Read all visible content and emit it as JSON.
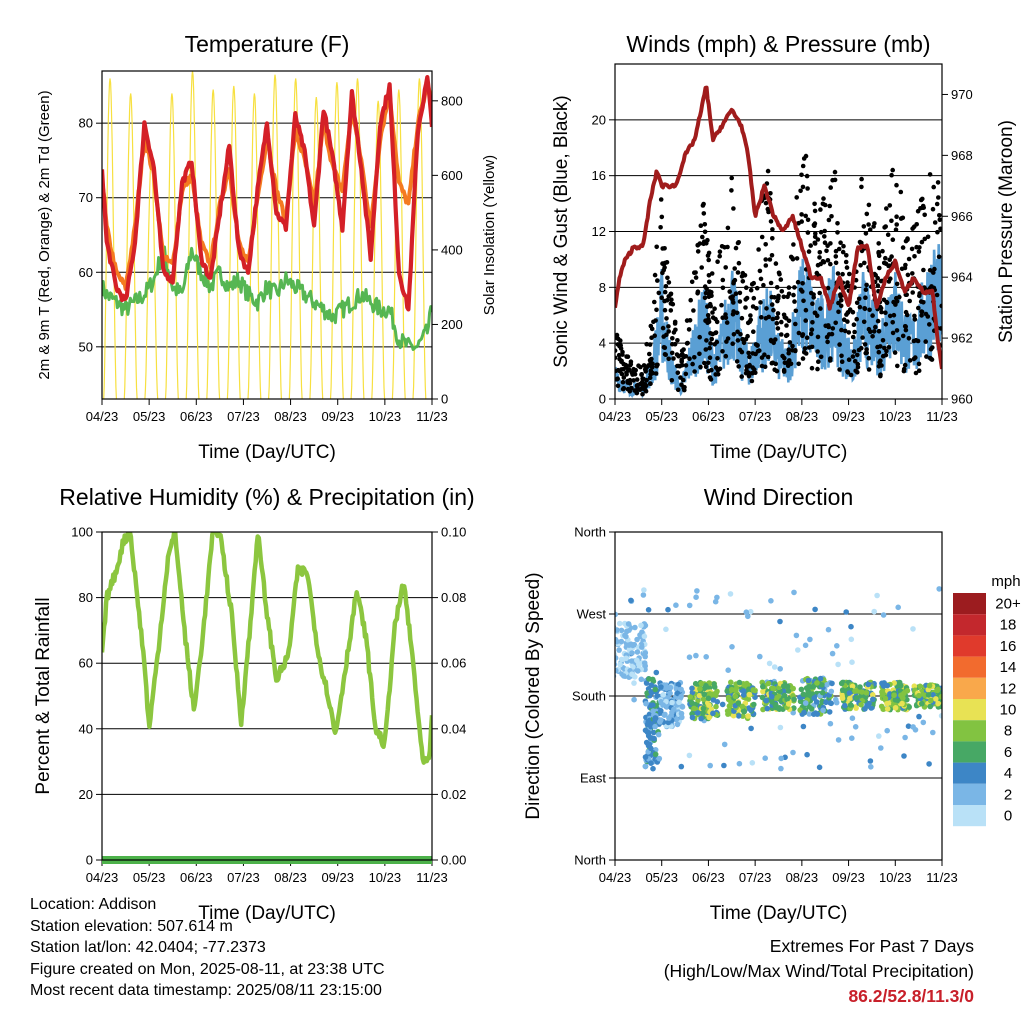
{
  "colors": {
    "t2m": "#d42027",
    "t9m": "#f47a20",
    "td": "#4db24a",
    "solar": "#f7e040",
    "gust": "#000000",
    "sonic": "#5a9fd4",
    "pressure": "#a01c1c",
    "rh": "#8cc63f",
    "precip": "#4db24a",
    "extremes": "#c8202a"
  },
  "info": {
    "location": "Location: Addison",
    "elevation": "Station elevation: 507.614 m",
    "latlon": "Station lat/lon: 42.0404; -77.2373",
    "created": "Figure created on Mon, 2025-08-11, at 23:38 UTC",
    "recent": "Most recent data timestamp: 2025/08/11 23:15:00"
  },
  "extremes": {
    "title": "Extremes For Past 7 Days",
    "subtitle": "(High/Low/Max Wind/Total Precipitation)",
    "values": "86.2/52.8/11.3/0"
  },
  "chart_data": [
    {
      "id": "temperature",
      "type": "line",
      "title": "Temperature (F)",
      "xlabel": "Time (Day/UTC)",
      "ylabel": "2m & 9m T (Red, Orange) & 2m Td (Green)",
      "y2label": "Solar Insolation (Yellow)",
      "x_ticks": [
        "04/23",
        "05/23",
        "06/23",
        "07/23",
        "08/23",
        "09/23",
        "10/23",
        "11/23"
      ],
      "xlim": [
        0,
        7
      ],
      "ylim": [
        43,
        87
      ],
      "y_ticks": [
        50,
        60,
        70,
        80
      ],
      "y2lim": [
        0,
        880
      ],
      "y2_ticks": [
        0,
        200,
        400,
        600,
        800
      ],
      "grid": true,
      "series": [
        {
          "key": "td",
          "x": [
            0,
            0.1,
            0.3,
            0.5,
            0.7,
            0.9,
            1.1,
            1.3,
            1.5,
            1.7,
            1.9,
            2.1,
            2.3,
            2.5,
            2.7,
            2.9,
            3.1,
            3.3,
            3.5,
            3.7,
            3.9,
            4.1,
            4.3,
            4.5,
            4.7,
            4.9,
            5.1,
            5.3,
            5.5,
            5.7,
            5.9,
            6.1,
            6.3,
            6.5,
            6.7,
            6.9,
            7
          ],
          "y": [
            58,
            57,
            56,
            55,
            56,
            57,
            59,
            63,
            58,
            57,
            63,
            60,
            58,
            60,
            58,
            59,
            57,
            56,
            58,
            57,
            59,
            58,
            57,
            56,
            55,
            54,
            55,
            56,
            57,
            56,
            55,
            55,
            51,
            50,
            50,
            52,
            55
          ]
        },
        {
          "key": "t9m",
          "x": [
            0,
            0.1,
            0.3,
            0.5,
            0.7,
            0.9,
            1.1,
            1.3,
            1.5,
            1.7,
            1.9,
            2.1,
            2.3,
            2.5,
            2.7,
            2.9,
            3.1,
            3.3,
            3.5,
            3.7,
            3.9,
            4.1,
            4.3,
            4.5,
            4.7,
            4.9,
            5.1,
            5.3,
            5.5,
            5.7,
            5.9,
            6.1,
            6.3,
            6.5,
            6.7,
            6.9,
            7
          ],
          "y": [
            73,
            66,
            60,
            58,
            66,
            78,
            73,
            62,
            61,
            71,
            73,
            64,
            61,
            69,
            74,
            64,
            61,
            70,
            78,
            71,
            67,
            79,
            75,
            69,
            80,
            74,
            71,
            82,
            75,
            66,
            78,
            84,
            72,
            69,
            80,
            85,
            83
          ]
        },
        {
          "key": "t2m",
          "x": [
            0,
            0.1,
            0.3,
            0.5,
            0.7,
            0.9,
            1.1,
            1.3,
            1.5,
            1.7,
            1.9,
            2.1,
            2.3,
            2.5,
            2.7,
            2.9,
            3.1,
            3.3,
            3.5,
            3.7,
            3.9,
            4.1,
            4.3,
            4.5,
            4.7,
            4.9,
            5.1,
            5.3,
            5.5,
            5.7,
            5.9,
            6.1,
            6.3,
            6.5,
            6.7,
            6.9,
            7
          ],
          "y": [
            74,
            64,
            58,
            56,
            64,
            80,
            74,
            60,
            59,
            72,
            75,
            62,
            59,
            68,
            77,
            63,
            60,
            71,
            80,
            68,
            66,
            81,
            76,
            66,
            82,
            75,
            66,
            84,
            74,
            62,
            80,
            85,
            60,
            55,
            79,
            86,
            80
          ]
        }
      ],
      "solar": {
        "key": "solar",
        "peaks": [
          860,
          820,
          640,
          820,
          880,
          830,
          840,
          820,
          870,
          860,
          810,
          850,
          860,
          800,
          830,
          860
        ]
      }
    },
    {
      "id": "winds",
      "type": "line",
      "title": "Winds (mph) & Pressure (mb)",
      "xlabel": "Time (Day/UTC)",
      "ylabel": "Sonic Wind & Gust (Blue, Black)",
      "y2label": "Station Pressure (Maroon)",
      "x_ticks": [
        "04/23",
        "05/23",
        "06/23",
        "07/23",
        "08/23",
        "09/23",
        "10/23",
        "11/23"
      ],
      "xlim": [
        0,
        7
      ],
      "ylim": [
        0,
        24
      ],
      "y_ticks": [
        0,
        4,
        8,
        12,
        16,
        20
      ],
      "y2lim": [
        960,
        971
      ],
      "y2_ticks": [
        960,
        962,
        964,
        966,
        968,
        970
      ],
      "grid": true,
      "envelope": {
        "x": [
          0,
          0.3,
          0.6,
          0.8,
          0.9,
          1.0,
          1.2,
          1.4,
          1.5,
          1.7,
          1.9,
          2.1,
          2.3,
          2.5,
          2.7,
          2.9,
          3.1,
          3.3,
          3.5,
          3.7,
          3.9,
          4.1,
          4.3,
          4.5,
          4.7,
          4.9,
          5.1,
          5.3,
          5.5,
          5.7,
          5.9,
          6.1,
          6.3,
          6.5,
          6.7,
          6.9,
          7
        ],
        "sonic": [
          2,
          1,
          1,
          3,
          5,
          8,
          3,
          1,
          2,
          5,
          7,
          3,
          5,
          9,
          4,
          3,
          6,
          7,
          4,
          3,
          8,
          9,
          6,
          7,
          8,
          5,
          3,
          8,
          6,
          5,
          9,
          7,
          5,
          6,
          9,
          10,
          8
        ],
        "gust": [
          5,
          3,
          2,
          7,
          11,
          14,
          8,
          3,
          4,
          11,
          14,
          8,
          11,
          16,
          10,
          7,
          13,
          16,
          9,
          7,
          16,
          17,
          13,
          14,
          17,
          11,
          7,
          16,
          13,
          10,
          17,
          15,
          11,
          13,
          16,
          16,
          15
        ]
      },
      "series": [
        {
          "key": "pressure",
          "name": "Station Pressure",
          "x": [
            0,
            0.1,
            0.2,
            0.4,
            0.6,
            0.75,
            0.9,
            1.0,
            1.15,
            1.3,
            1.5,
            1.7,
            1.85,
            1.95,
            2.1,
            2.3,
            2.5,
            2.7,
            2.85,
            3.0,
            3.2,
            3.4,
            3.6,
            3.8,
            4.0,
            4.2,
            4.4,
            4.6,
            4.8,
            5.0,
            5.2,
            5.4,
            5.6,
            5.8,
            6.0,
            6.2,
            6.4,
            6.6,
            6.8,
            6.9,
            7
          ],
          "y": [
            963,
            964,
            964.5,
            965,
            965,
            966.5,
            967.5,
            967,
            967,
            967,
            968,
            968.5,
            969.5,
            970.3,
            968.5,
            969,
            969.5,
            969,
            968,
            966,
            967,
            966,
            965.5,
            966,
            965,
            964,
            964,
            963,
            964,
            963,
            965,
            965,
            963,
            964,
            964.5,
            963.5,
            964,
            963.5,
            963.5,
            962,
            961
          ]
        }
      ]
    },
    {
      "id": "humidity",
      "type": "line",
      "title": "Relative Humidity (%) & Precipitation (in)",
      "xlabel": "Time (Day/UTC)",
      "ylabel": "Percent & Total Rainfall",
      "x_ticks": [
        "04/23",
        "05/23",
        "06/23",
        "07/23",
        "08/23",
        "09/23",
        "10/23",
        "11/23"
      ],
      "xlim": [
        0,
        7
      ],
      "ylim": [
        0,
        100
      ],
      "y_ticks": [
        0,
        20,
        40,
        60,
        80,
        100
      ],
      "y2lim": [
        0,
        0.1
      ],
      "y2_ticks": [
        "0.00",
        "0.02",
        "0.04",
        "0.06",
        "0.08",
        "0.10"
      ],
      "grid": true,
      "series": [
        {
          "key": "rh",
          "x": [
            0,
            0.1,
            0.3,
            0.45,
            0.6,
            0.75,
            0.9,
            1.0,
            1.2,
            1.4,
            1.55,
            1.75,
            1.95,
            2.15,
            2.35,
            2.5,
            2.75,
            2.95,
            3.15,
            3.3,
            3.5,
            3.7,
            3.95,
            4.15,
            4.35,
            4.6,
            4.8,
            4.95,
            5.2,
            5.4,
            5.6,
            5.8,
            6.0,
            6.2,
            6.4,
            6.6,
            6.8,
            6.95,
            7
          ],
          "y": [
            62,
            80,
            88,
            97,
            100,
            80,
            60,
            40,
            65,
            92,
            100,
            70,
            45,
            70,
            100,
            100,
            75,
            42,
            72,
            100,
            75,
            55,
            62,
            88,
            88,
            62,
            50,
            38,
            62,
            82,
            68,
            40,
            35,
            70,
            85,
            60,
            30,
            30,
            45
          ]
        },
        {
          "key": "precip",
          "x": [
            0,
            7
          ],
          "y": [
            0,
            0
          ]
        }
      ]
    },
    {
      "id": "direction",
      "type": "scatter",
      "title": "Wind Direction",
      "xlabel": "Time (Day/UTC)",
      "ylabel": "Direction (Colored By Speed)",
      "x_ticks": [
        "04/23",
        "05/23",
        "06/23",
        "07/23",
        "08/23",
        "09/23",
        "10/23",
        "11/23"
      ],
      "xlim": [
        0,
        7
      ],
      "ylim": [
        0,
        360
      ],
      "y_ticks": [
        "North",
        "East",
        "South",
        "West",
        "North"
      ],
      "grid": true,
      "legend": {
        "title": "mph",
        "placement": "right",
        "labels": [
          "20+",
          "18",
          "16",
          "14",
          "12",
          "10",
          "8",
          "6",
          "4",
          "2",
          "0"
        ],
        "colors": [
          "#9c1c1f",
          "#c3282d",
          "#e03a2c",
          "#f26b2e",
          "#f9a84b",
          "#e8e254",
          "#82c341",
          "#47a865",
          "#3d86c6",
          "#7ab6e6",
          "#b9e1f7"
        ]
      },
      "clusters": [
        {
          "x": 0.3,
          "dir": 230,
          "spread": 30,
          "width": 0.35,
          "speed": [
            0,
            2
          ]
        },
        {
          "x": 0.8,
          "dir": 150,
          "spread": 50,
          "width": 0.15,
          "speed": [
            2,
            6
          ]
        },
        {
          "x": 1.2,
          "dir": 170,
          "spread": 25,
          "width": 0.25,
          "speed": [
            0,
            4
          ]
        },
        {
          "x": 1.9,
          "dir": 175,
          "spread": 20,
          "width": 0.3,
          "speed": [
            4,
            10
          ]
        },
        {
          "x": 2.7,
          "dir": 175,
          "spread": 20,
          "width": 0.3,
          "speed": [
            4,
            10
          ]
        },
        {
          "x": 3.5,
          "dir": 180,
          "spread": 15,
          "width": 0.35,
          "speed": [
            4,
            10
          ]
        },
        {
          "x": 4.3,
          "dir": 180,
          "spread": 20,
          "width": 0.35,
          "speed": [
            2,
            8
          ]
        },
        {
          "x": 5.2,
          "dir": 180,
          "spread": 15,
          "width": 0.35,
          "speed": [
            4,
            10
          ]
        },
        {
          "x": 6.0,
          "dir": 180,
          "spread": 15,
          "width": 0.3,
          "speed": [
            4,
            10
          ]
        },
        {
          "x": 6.7,
          "dir": 180,
          "spread": 12,
          "width": 0.3,
          "speed": [
            4,
            10
          ]
        }
      ]
    }
  ]
}
